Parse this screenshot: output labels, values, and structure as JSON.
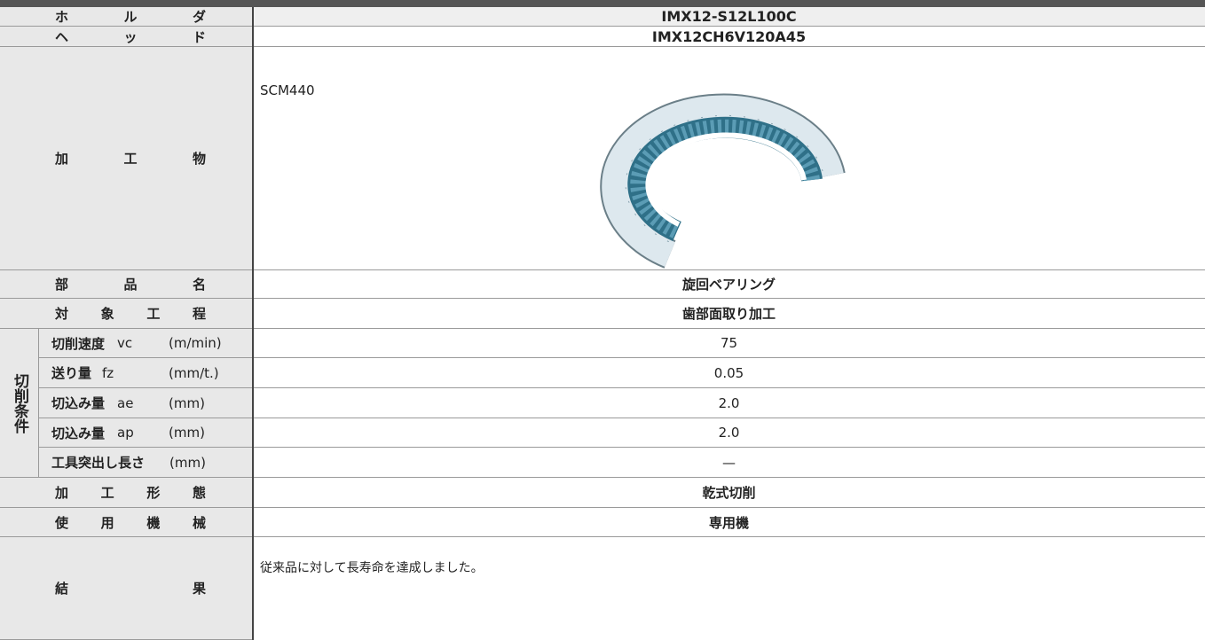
{
  "holder": {
    "label": "ホ ル ダ",
    "value": "IMX12-S12L100C"
  },
  "head": {
    "label": "ヘ ッ ド",
    "value": "IMX12CH6V120A45"
  },
  "workpiece": {
    "label": "加 工 物",
    "material": "SCM440"
  },
  "part_name": {
    "label": "部 品 名",
    "value": "旋回ベアリング"
  },
  "process": {
    "label": "対 象 工 程",
    "value": "歯部面取り加工"
  },
  "cutting_conditions": {
    "label": "切削条件",
    "items": [
      {
        "name": "切削速度",
        "symbol": "vc",
        "unit": "(m/min)",
        "value": "75"
      },
      {
        "name": "送り量",
        "symbol": "fz",
        "unit": "(mm/t.)",
        "value": "0.05"
      },
      {
        "name": "切込み量",
        "symbol": "ae",
        "unit": "(mm)",
        "value": "2.0"
      },
      {
        "name": "切込み量",
        "symbol": "ap",
        "unit": "(mm)",
        "value": "2.0"
      },
      {
        "name": "工具突出し長さ",
        "unit": "(mm)",
        "value": "—"
      }
    ]
  },
  "machining_type": {
    "label": "加 工 形 態",
    "value": "乾式切削"
  },
  "machine": {
    "label": "使 用 機 械",
    "value": "専用機"
  },
  "result": {
    "label": "結 果",
    "value": "従来品に対して長寿命を達成しました。"
  }
}
